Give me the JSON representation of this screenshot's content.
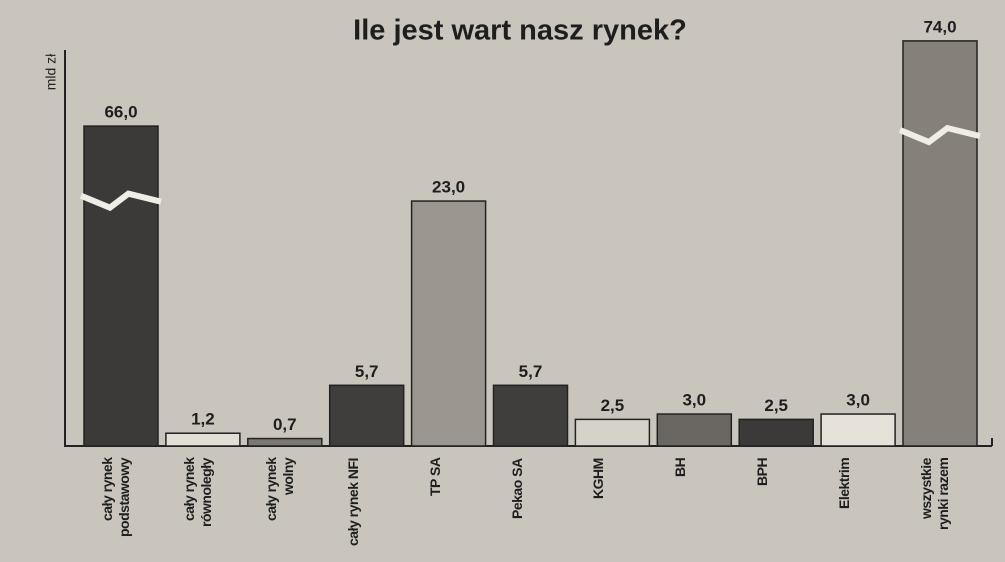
{
  "chart_data": {
    "type": "bar",
    "title": "Ile jest wart nasz rynek?",
    "y_label": "mld zł",
    "categories": [
      "cały rynek\npodstawowy",
      "cały rynek\nrównoległy",
      "cały rynek\nwolny",
      "cały rynek NFI",
      "TP SA",
      "Pekao SA",
      "KGHM",
      "BH",
      "BPH",
      "Elektrim",
      "wszystkie\nrynki razem"
    ],
    "values": [
      66.0,
      1.2,
      0.7,
      5.7,
      23.0,
      5.7,
      2.5,
      3.0,
      2.5,
      3.0,
      74.0
    ],
    "value_labels": [
      "66,0",
      "1,2",
      "0,7",
      "5,7",
      "23,0",
      "5,7",
      "2,5",
      "3,0",
      "2,5",
      "3,0",
      "74,0"
    ],
    "colors": [
      "#3b3a38",
      "#e2ded6",
      "#7c7872",
      "#3f3e3c",
      "#9a958e",
      "#3f3e3c",
      "#d6d2ca",
      "#6a6762",
      "#3b3a38",
      "#e6e2da",
      "#858079"
    ]
  }
}
